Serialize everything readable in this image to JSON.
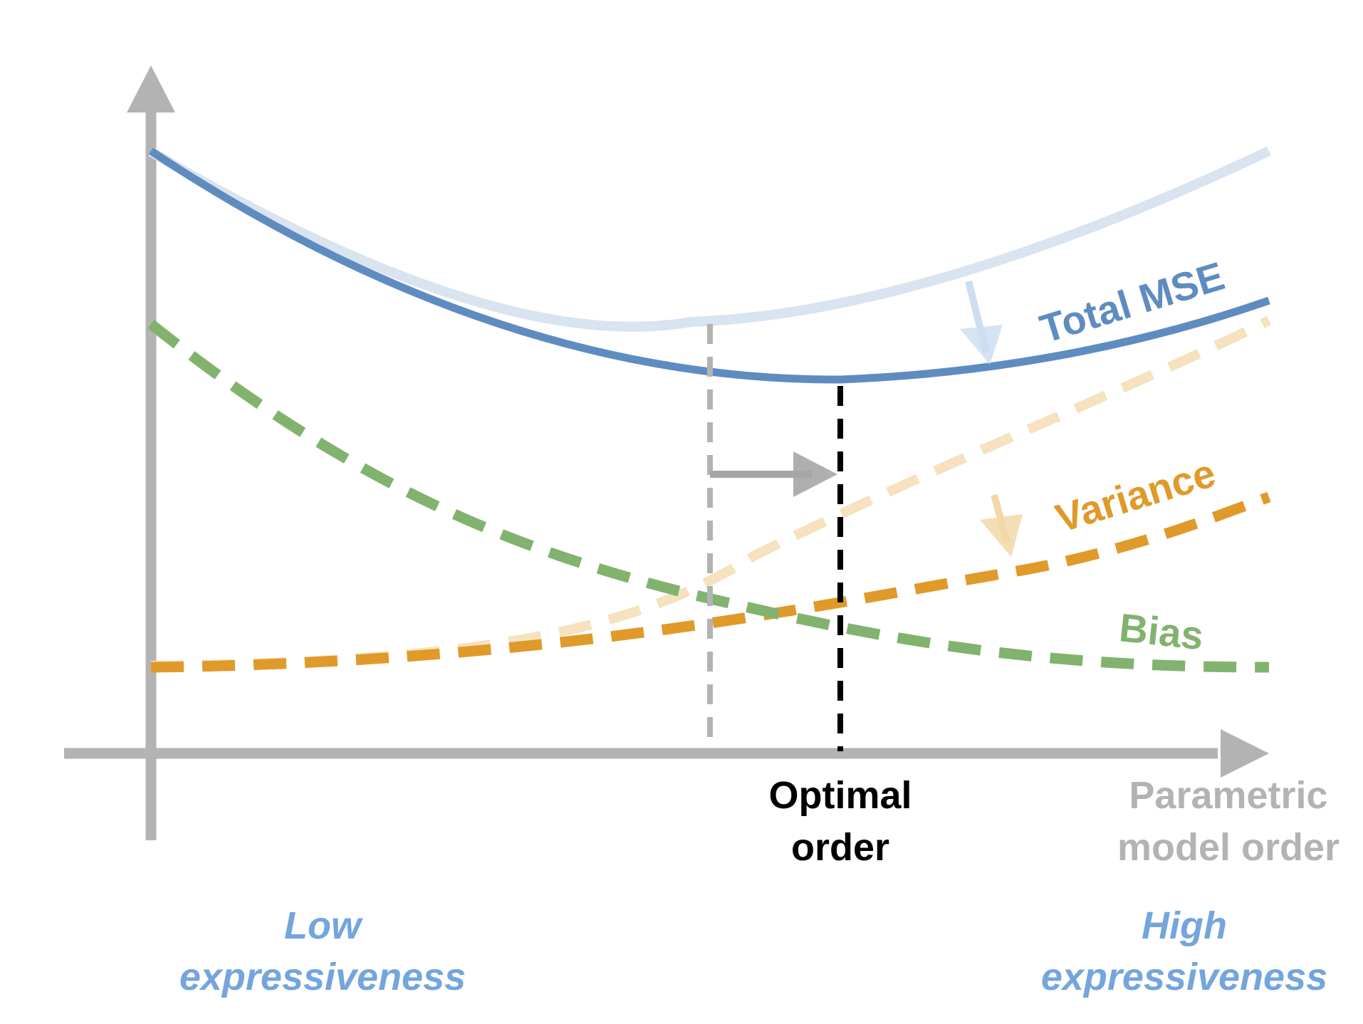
{
  "labels": {
    "total_mse": "Total MSE",
    "variance": "Variance",
    "bias": "Bias",
    "optimal_order_line1": "Optimal",
    "optimal_order_line2": "order",
    "x_axis_line1": "Parametric",
    "x_axis_line2": "model order",
    "low_line1": "Low",
    "low_line2": "expressiveness",
    "high_line1": "High",
    "high_line2": "expressiveness"
  },
  "colors": {
    "axis": "#b3b3b3",
    "mse": "#5f8cc0",
    "mse_faded": "#d9e4f1",
    "variance": "#e09a2a",
    "variance_faded": "#f6e2bf",
    "bias": "#82b36e",
    "optimal_line": "#000000",
    "old_optimal_line": "#b3b3b3",
    "shift_arrow": "#a6a6a6",
    "expressiveness_text": "#74a5dc",
    "axis_label_text": "#b3b3b3"
  }
}
